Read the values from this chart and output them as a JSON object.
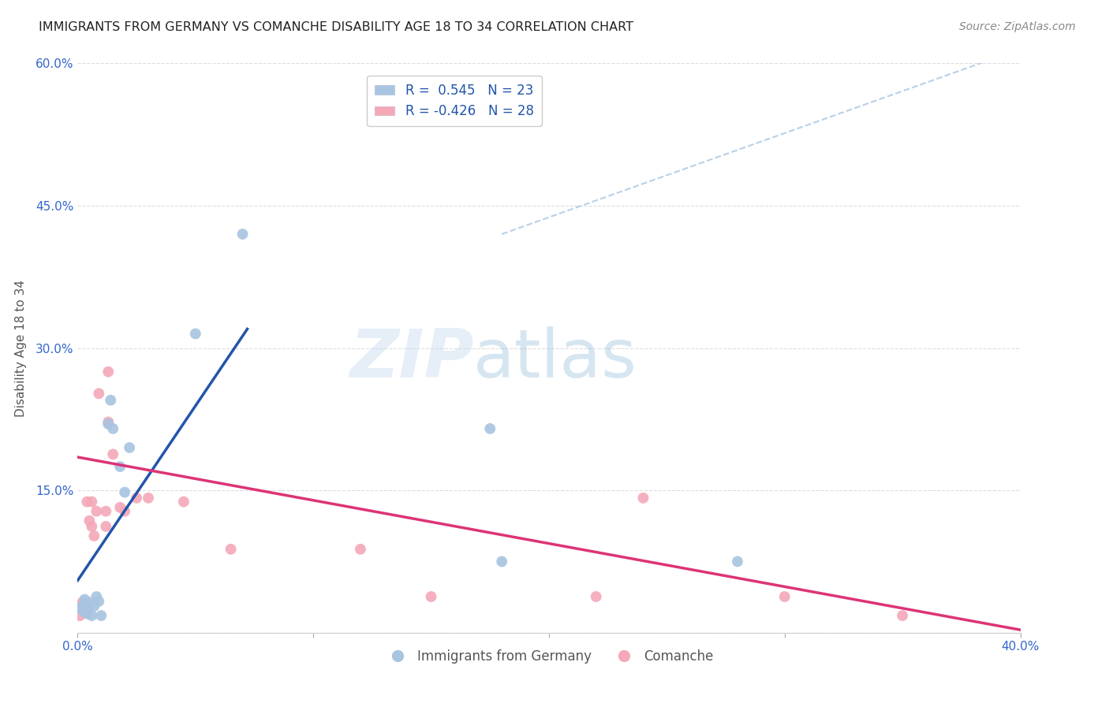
{
  "title": "IMMIGRANTS FROM GERMANY VS COMANCHE DISABILITY AGE 18 TO 34 CORRELATION CHART",
  "source": "Source: ZipAtlas.com",
  "ylabel": "Disability Age 18 to 34",
  "xlabel": "",
  "legend_label_blue": "Immigrants from Germany",
  "legend_label_pink": "Comanche",
  "r_blue": 0.545,
  "n_blue": 23,
  "r_pink": -0.426,
  "n_pink": 28,
  "xmin": 0.0,
  "xmax": 0.4,
  "ymin": 0.0,
  "ymax": 0.6,
  "xticks": [
    0.0,
    0.1,
    0.2,
    0.3,
    0.4
  ],
  "yticks": [
    0.0,
    0.15,
    0.3,
    0.45,
    0.6
  ],
  "ytick_labels": [
    "",
    "15.0%",
    "30.0%",
    "45.0%",
    "60.0%"
  ],
  "xtick_labels": [
    "0.0%",
    "",
    "",
    "",
    "40.0%"
  ],
  "blue_scatter": [
    [
      0.001,
      0.025
    ],
    [
      0.002,
      0.028
    ],
    [
      0.003,
      0.022
    ],
    [
      0.003,
      0.035
    ],
    [
      0.004,
      0.02
    ],
    [
      0.005,
      0.032
    ],
    [
      0.005,
      0.028
    ],
    [
      0.006,
      0.018
    ],
    [
      0.007,
      0.028
    ],
    [
      0.008,
      0.038
    ],
    [
      0.009,
      0.033
    ],
    [
      0.01,
      0.018
    ],
    [
      0.013,
      0.22
    ],
    [
      0.014,
      0.245
    ],
    [
      0.015,
      0.215
    ],
    [
      0.018,
      0.175
    ],
    [
      0.02,
      0.148
    ],
    [
      0.022,
      0.195
    ],
    [
      0.05,
      0.315
    ],
    [
      0.07,
      0.42
    ],
    [
      0.175,
      0.215
    ],
    [
      0.18,
      0.075
    ],
    [
      0.28,
      0.075
    ]
  ],
  "pink_scatter": [
    [
      0.001,
      0.018
    ],
    [
      0.002,
      0.032
    ],
    [
      0.003,
      0.028
    ],
    [
      0.003,
      0.022
    ],
    [
      0.004,
      0.138
    ],
    [
      0.005,
      0.118
    ],
    [
      0.006,
      0.138
    ],
    [
      0.006,
      0.112
    ],
    [
      0.007,
      0.102
    ],
    [
      0.008,
      0.128
    ],
    [
      0.009,
      0.252
    ],
    [
      0.012,
      0.128
    ],
    [
      0.012,
      0.112
    ],
    [
      0.013,
      0.275
    ],
    [
      0.013,
      0.222
    ],
    [
      0.015,
      0.188
    ],
    [
      0.018,
      0.132
    ],
    [
      0.02,
      0.128
    ],
    [
      0.025,
      0.142
    ],
    [
      0.03,
      0.142
    ],
    [
      0.045,
      0.138
    ],
    [
      0.065,
      0.088
    ],
    [
      0.12,
      0.088
    ],
    [
      0.15,
      0.038
    ],
    [
      0.22,
      0.038
    ],
    [
      0.24,
      0.142
    ],
    [
      0.3,
      0.038
    ],
    [
      0.35,
      0.018
    ]
  ],
  "blue_line_x": [
    0.0,
    0.072
  ],
  "blue_line_y": [
    0.055,
    0.32
  ],
  "pink_line_x": [
    0.0,
    0.4
  ],
  "pink_line_y": [
    0.185,
    0.003
  ],
  "dashed_line_x": [
    0.18,
    0.4
  ],
  "dashed_line_y": [
    0.42,
    0.615
  ],
  "watermark_zip": "ZIP",
  "watermark_atlas": "atlas",
  "title_color": "#222222",
  "source_color": "#888888",
  "blue_color": "#a8c4e0",
  "pink_color": "#f4a8b8",
  "blue_line_color": "#2255aa",
  "pink_line_color": "#dd3377",
  "dashed_line_color": "#b8d0e8",
  "legend_text_color": "#2255aa",
  "grid_color": "#dddddd",
  "axis_label_color": "#3366cc",
  "scatter_size": 100
}
